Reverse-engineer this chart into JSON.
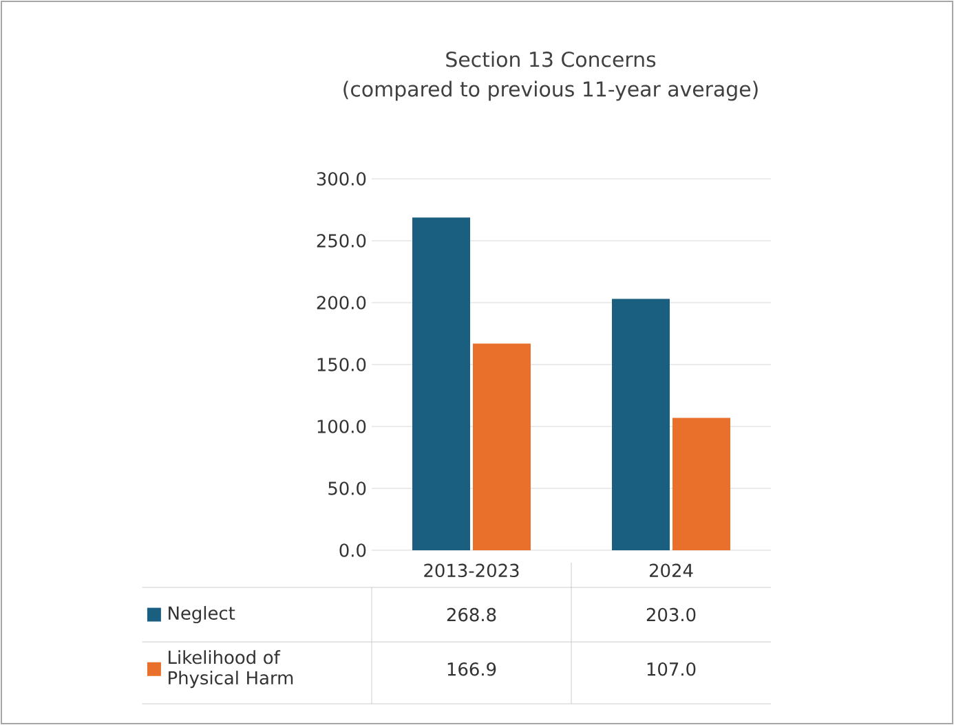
{
  "chart_data": {
    "type": "bar",
    "title": "Section 13 Concerns",
    "subtitle": "(compared to previous 11-year average)",
    "categories": [
      "2013-2023",
      "2024"
    ],
    "series": [
      {
        "name": "Neglect",
        "color": "#1a5e80",
        "values": [
          268.8,
          203.0
        ],
        "value_labels": [
          "268.8",
          "203.0"
        ]
      },
      {
        "name": "Likelihood of Physical Harm",
        "color": "#e8702a",
        "values": [
          166.9,
          107.0
        ],
        "value_labels": [
          "166.9",
          "107.0"
        ]
      }
    ],
    "ylim": [
      0,
      300
    ],
    "yticks": [
      {
        "value": 0,
        "label": "0.0"
      },
      {
        "value": 50,
        "label": "50.0"
      },
      {
        "value": 100,
        "label": "100.0"
      },
      {
        "value": 150,
        "label": "150.0"
      },
      {
        "value": 200,
        "label": "200.0"
      },
      {
        "value": 250,
        "label": "250.0"
      },
      {
        "value": 300,
        "label": "300.0"
      }
    ],
    "grid": "y",
    "legend": "bottom"
  }
}
